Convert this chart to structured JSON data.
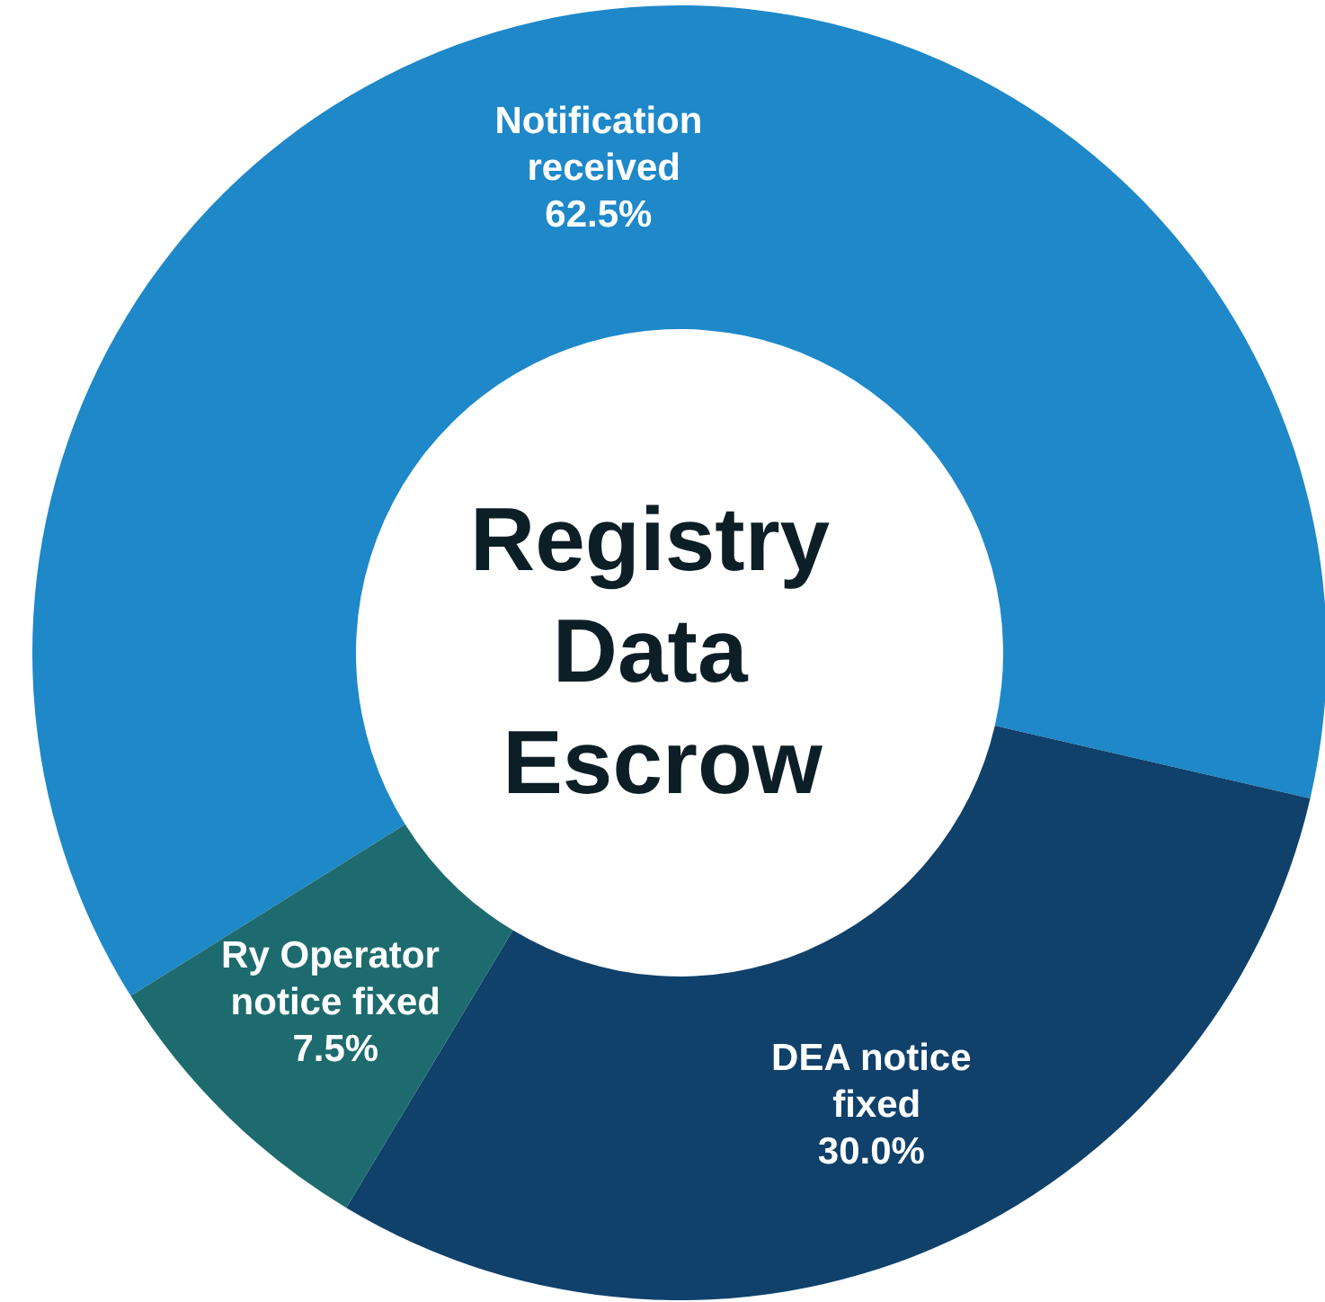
{
  "chart_data": {
    "type": "donut",
    "title": "Registry Data Escrow",
    "categories": [
      "Notification received",
      "DEA notice fixed",
      "Ry Operator notice fixed"
    ],
    "values": [
      62.5,
      30.0,
      7.5
    ],
    "value_labels": [
      "62.5%",
      "30.0%",
      "7.5%"
    ],
    "colors": [
      "#1e88c9",
      "#0f416b",
      "#1d6b6e"
    ],
    "legend": false
  }
}
